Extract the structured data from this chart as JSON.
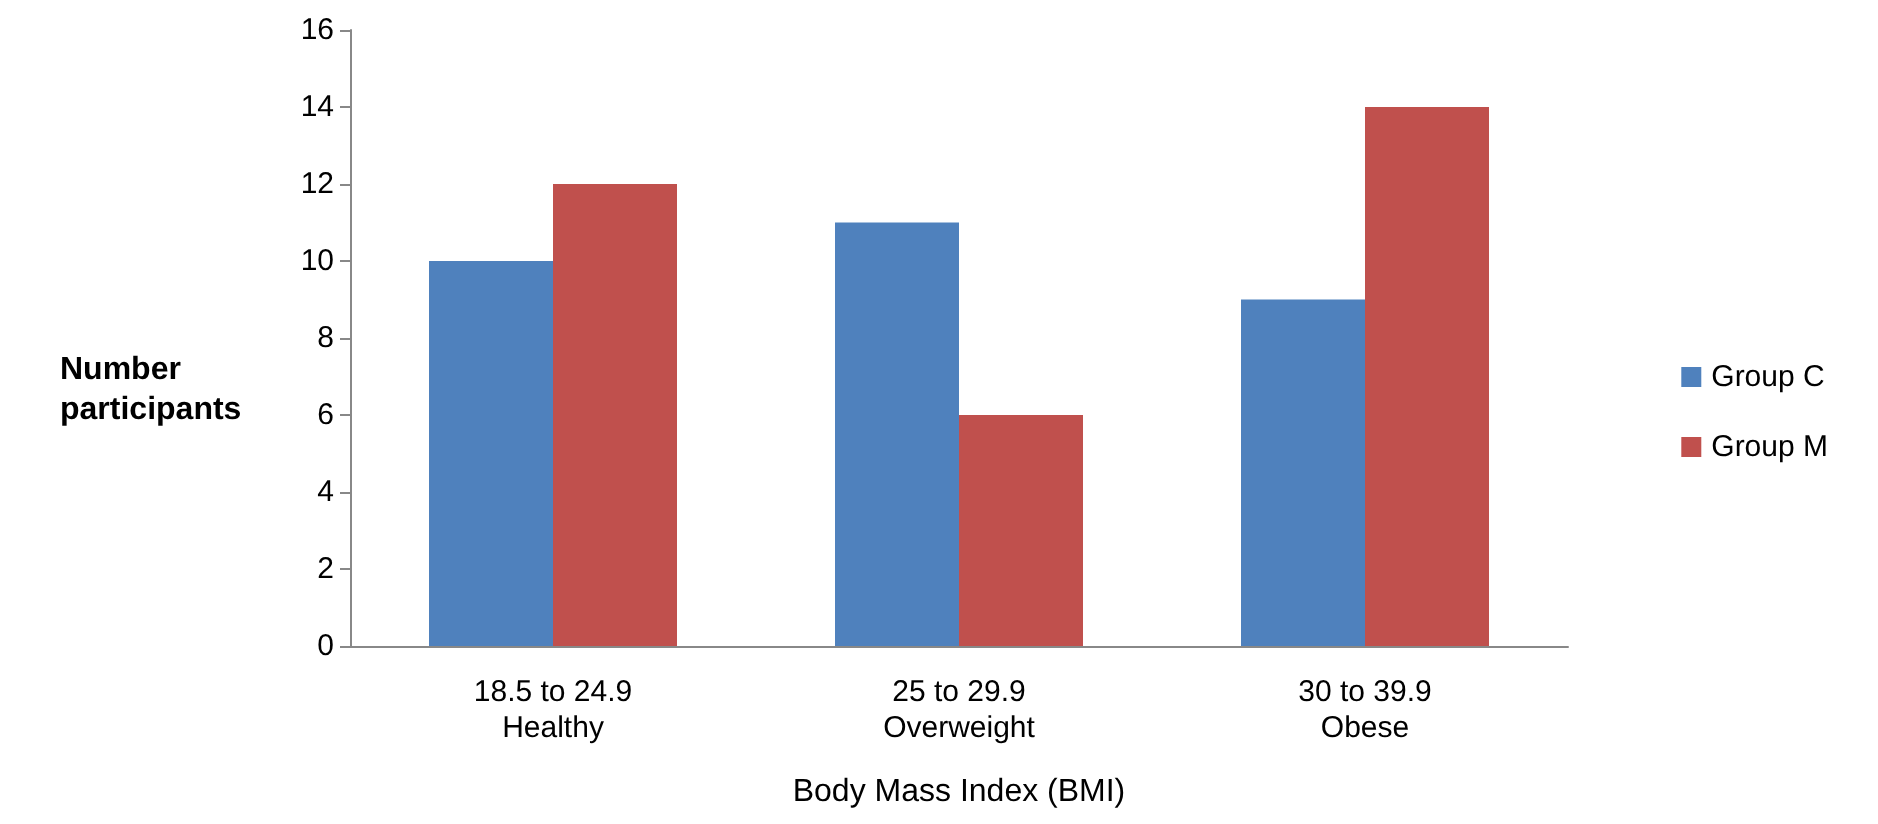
{
  "chart_data": {
    "type": "bar",
    "xlabel": "Body Mass Index (BMI)",
    "ylabel": "Number\nparticipants",
    "categories": [
      "18.5 to 24.9\nHealthy",
      "25 to 29.9\nOverweight",
      "30 to 39.9\nObese"
    ],
    "series": [
      {
        "name": "Group C",
        "color": "#4f81bd",
        "values": [
          10,
          11,
          9
        ]
      },
      {
        "name": "Group M",
        "color": "#c0504d",
        "values": [
          12,
          6,
          14
        ]
      }
    ],
    "ylim": [
      0,
      16
    ],
    "yticks": [
      0,
      2,
      4,
      6,
      8,
      10,
      12,
      14,
      16
    ],
    "grid": false,
    "legend": "right"
  }
}
